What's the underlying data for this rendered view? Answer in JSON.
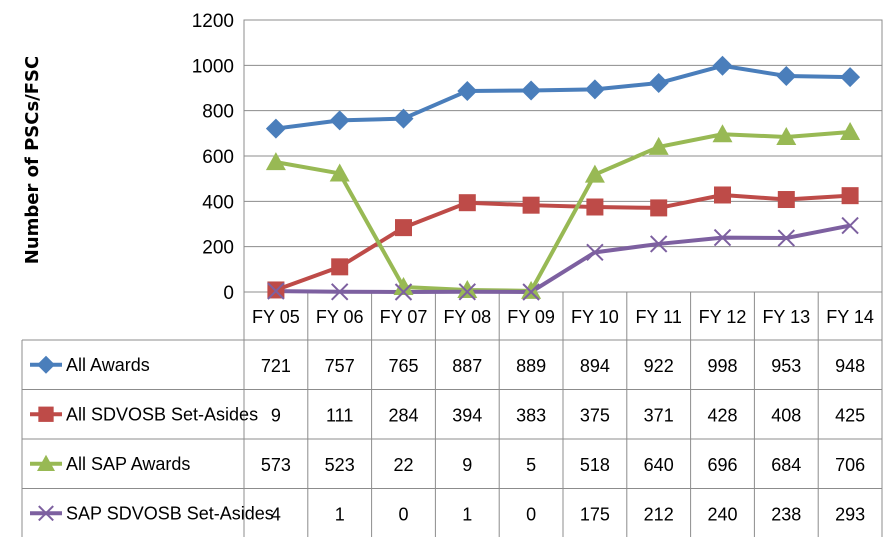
{
  "chart_data": {
    "type": "line",
    "ylabel": "Number of PSCs/FSC",
    "ylim": [
      0,
      1200
    ],
    "yticks": [
      0,
      200,
      400,
      600,
      800,
      1000,
      1200
    ],
    "grid": true,
    "legend_placement": "data-table-left",
    "categories": [
      "FY 05",
      "FY 06",
      "FY 07",
      "FY 08",
      "FY 09",
      "FY 10",
      "FY 11",
      "FY 12",
      "FY 13",
      "FY 14"
    ],
    "series": [
      {
        "name": "All Awards",
        "color": "#4a7ebb",
        "marker": "diamond",
        "values": [
          721,
          757,
          765,
          887,
          889,
          894,
          922,
          998,
          953,
          948
        ]
      },
      {
        "name": "All SDVOSB Set-Asides",
        "color": "#be4b48",
        "marker": "square",
        "values": [
          9,
          111,
          284,
          394,
          383,
          375,
          371,
          428,
          408,
          425
        ]
      },
      {
        "name": "All SAP Awards",
        "color": "#98b954",
        "marker": "triangle",
        "values": [
          573,
          523,
          22,
          9,
          5,
          518,
          640,
          696,
          684,
          706
        ]
      },
      {
        "name": "SAP SDVOSB Set-Asides",
        "color": "#7d60a0",
        "marker": "x",
        "values": [
          4,
          1,
          0,
          1,
          0,
          175,
          212,
          240,
          238,
          293
        ]
      }
    ]
  }
}
